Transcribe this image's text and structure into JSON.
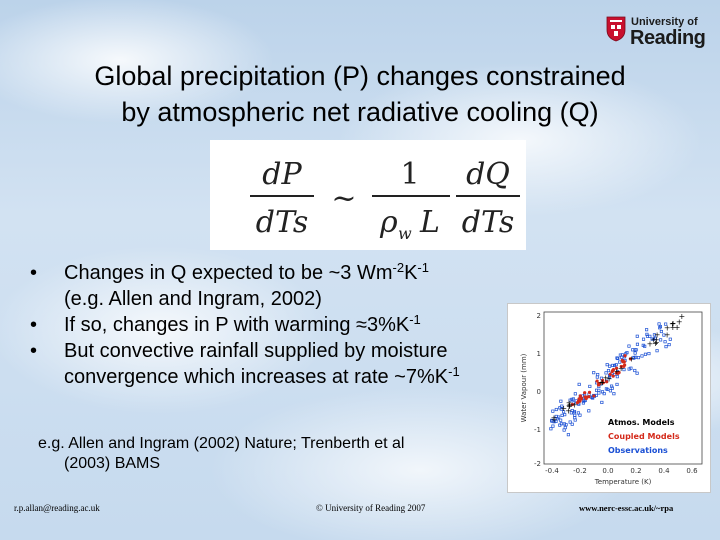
{
  "logo": {
    "line1": "University of",
    "line2": "Reading",
    "colors": {
      "red": "#c8102e",
      "dark": "#1b1b1b"
    }
  },
  "title": {
    "line1": "Global precipitation (P) changes constrained",
    "line2": "by atmospheric net radiative cooling (Q)"
  },
  "equation": {
    "lhs_num": "dP",
    "lhs_den": "dTs",
    "relation": "~",
    "coef_num": "1",
    "coef_den_rho": "ρ",
    "coef_den_sub": "w",
    "coef_den_L": "L",
    "rhs_num": "dQ",
    "rhs_den": "dTs"
  },
  "bullets": [
    {
      "marker": "•",
      "text1": "Changes in Q expected to be ~3 Wm",
      "sup1": "-2",
      "text2": "K",
      "sup2": "-1",
      "text3": "(e.g. Allen and Ingram, 2002)"
    },
    {
      "marker": "•",
      "text1": "If so, changes in P with warming ≈3%K",
      "sup1": "-1"
    },
    {
      "marker": "•",
      "text1": "But convective rainfall supplied by moisture convergence which increases at rate ~7%K",
      "sup1": "-1"
    }
  ],
  "reference": {
    "line1": "e.g. Allen and Ingram (2002) Nature; Trenberth et al",
    "line2": "(2003) BAMS"
  },
  "figure": {
    "xlabel": "Temperature (K)",
    "ylabel": "Water Vapour (mm)",
    "xticks": [
      "-0.4",
      "-0.2",
      "0.0",
      "0.2",
      "0.4",
      "0.6"
    ],
    "yticks": [
      "2",
      "1",
      "0",
      "-1",
      "-2"
    ],
    "legend": [
      {
        "label": "Atmos. Models",
        "color": "#000000"
      },
      {
        "label": "Coupled Models",
        "color": "#d42a1a"
      },
      {
        "label": "Observations",
        "color": "#1a4fd4"
      }
    ]
  },
  "footer": {
    "left": "r.p.allan@reading.ac.uk",
    "center": "© University of Reading 2007",
    "right": "www.nerc-essc.ac.uk/~rpa"
  }
}
